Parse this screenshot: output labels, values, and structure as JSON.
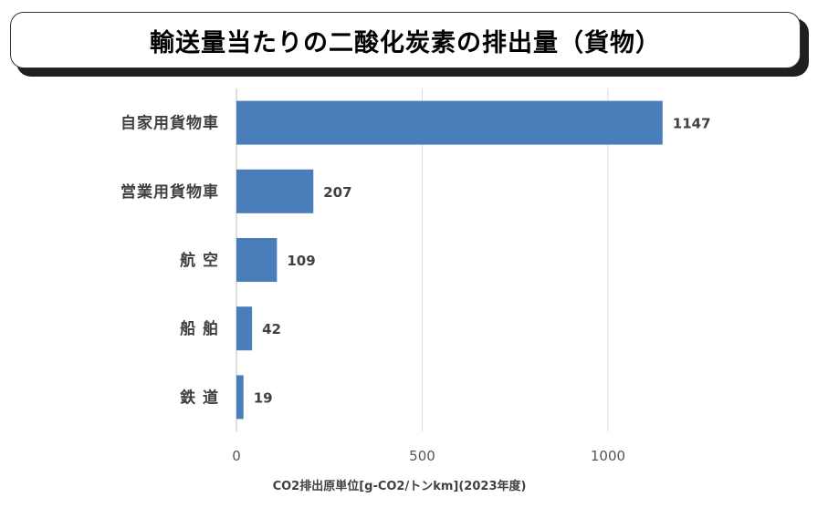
{
  "header": {
    "title": "輸送量当たりの二酸化炭素の排出量（貨物）"
  },
  "chart_data": {
    "type": "bar",
    "orientation": "horizontal",
    "categories": [
      "自家用貨物車",
      "営業用貨物車",
      "航空",
      "船舶",
      "鉄道"
    ],
    "category_labels": [
      "自家用貨物車",
      "営業用貨物車",
      "航 空",
      "船 舶",
      "鉄 道"
    ],
    "values": [
      1147,
      207,
      109,
      42,
      19
    ],
    "value_labels": [
      "1147",
      "207",
      "109",
      "42",
      "19"
    ],
    "title": "輸送量当たりの二酸化炭素の排出量（貨物）",
    "xlabel": "CO2排出原単位[g-CO2/トンkm](2023年度)",
    "xlim": [
      0,
      1150
    ],
    "xticks": [
      0,
      500,
      1000
    ],
    "xtick_labels": [
      "0",
      "500",
      "1000"
    ],
    "grid": true,
    "legend": "none",
    "bar_color": "#4a7ebb",
    "grid_color": "#d9d9d9",
    "axis_color": "#bfbfbf"
  }
}
